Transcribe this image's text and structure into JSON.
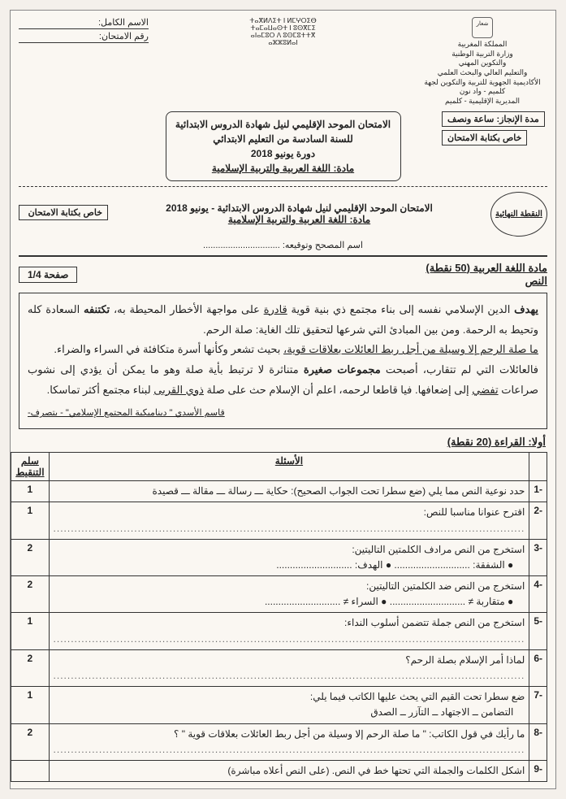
{
  "header": {
    "right": {
      "lines": [
        "المملكة المغربية",
        "وزارة التربية الوطنية",
        "والتكوين المهني",
        "والتعليم العالي والبحث العلمي",
        "الأكاديمية الجهوية للتربية والتكوين لجهة كلميم - واد نون",
        "المديرية الإقليمية - كلميم"
      ]
    },
    "center": {
      "lines": [
        "ⵜⴰⴳⵍⴷⵉⵜ ⵏ ⵍⵎⵖⵔⵉⴱ",
        "ⵜⴰⵎⴰⵡⴰⵙⵜ ⵏ ⵓⵙⴳⵎⵉ",
        "ⴰⵏⴰⵎⵓⵔ ⴷ ⵓⵙⵎⵓⵜⵜⴳ",
        "ⴰⵣⵣⵓⵍⴰⵏ"
      ]
    },
    "left": {
      "name_label": "الاسم الكامل:",
      "num_label": "رقم الامتحان:"
    }
  },
  "duration": "مدة الإنجاز: ساعة ونصف",
  "writer_tag": "خاص بكتابة الامتحان",
  "title_box": {
    "l1": "الامتحان الموحد الإقليمي لنيل شهادة الدروس الابتدائية",
    "l2": "للسنة السادسة من التعليم الابتدائي",
    "l3": "دورة يونيو 2018",
    "l4": "مادة: اللغة العربية والتربية الإسلامية"
  },
  "sub_header": {
    "final_grade": "النقطة النهائية",
    "line1": "الامتحان الموحد الإقليمي لنيل شهادة الدروس الابتدائية - يونيو 2018",
    "line2": "مادة: اللغة العربية والتربية الإسلامية",
    "sig": "اسم المصحح وتوقيعه: ..............................."
  },
  "section": {
    "title": "مادة اللغة العربية (50 نقطة)",
    "subtitle": "النص",
    "page": "صفحة 1/4"
  },
  "passage": {
    "p1a": "يهدف",
    "p1b": " الدين الإسلامي نفسه إلى بناء مجتمع ذي بنية قوية ",
    "p1c": "قادرة",
    "p1d": " على مواجهة الأخطار المحيطة به، ",
    "p1e": "تكتنفه",
    "p1f": " السعادة كله وتحيط به الرحمة. ومن بين المبادئ التي شرعها لتحقيق تلك الغاية: صلة الرحم.",
    "p2": "ما صلة الرحم إلا وسيلة من أجل ربط العائلات بعلاقات قوية،",
    "p2b": " بحيث تشعر وكأنها أسرة متكافئة في السراء والضراء.",
    "p3a": "فالعائلات التي لم تتقارب، أصبحت ",
    "p3b": "مجموعات صغيرة",
    "p3c": " متناثرة لا ترتبط بأية صلة وهو ما يمكن أن يؤدي إلى نشوب صراعات ",
    "p3d": "تفضي",
    "p3e": " إلى إضعافها. فيا قاطعا لرحمه، اعلم أن الإسلام حث على صلة ",
    "p3f": "ذوي القربى",
    "p3g": " لبناء مجتمع أكثر تماسكا.",
    "source": "قاسم الأسدي \" ديناميكية المجتمع الإسلامي\" - بتصرف-"
  },
  "reading": {
    "title": "أولا: القراءة (20 نقطة)",
    "th_q": "الأسئلة",
    "th_score": "سلم التنقيط",
    "rows": [
      {
        "n": "-1",
        "q": "حدد نوعية النص مما يلي (ضع سطرا تحت الجواب الصحيح): حكاية ـــ رسالة ـــ مقالة ـــ قصيدة",
        "score": "1"
      },
      {
        "n": "-2",
        "q": "اقترح عنوانا مناسبا للنص:",
        "dots": true,
        "score": "1"
      },
      {
        "n": "-3",
        "q": "استخرج من النص مرادف الكلمتين التاليتين:",
        "sub": "● الشفقة: ............................    ● الهدف: ............................",
        "score": "2"
      },
      {
        "n": "-4",
        "q": "استخرج من النص ضد الكلمتين التاليتين:",
        "sub": "● متقاربة ≠ ............................    ● السراء ≠ ............................",
        "score": "2"
      },
      {
        "n": "-5",
        "q": "استخرج من النص جملة تتضمن أسلوب النداء:",
        "dots": true,
        "score": "1"
      },
      {
        "n": "-6",
        "q": "لماذا أمر الإسلام بصلة الرحم؟",
        "dots": true,
        "score": "2"
      },
      {
        "n": "-7",
        "q": "ضع سطرا تحت القيم التي يحث عليها الكاتب فيما يلي:",
        "sub": "التضامن ــ الاجتهاد ــ التآزر ــ الصدق",
        "score": "1"
      },
      {
        "n": "-8",
        "q": "ما رأيك في قول الكاتب: \" ما صلة الرحم إلا وسيلة من أجل ربط العائلات بعلاقات قوية \" ؟",
        "dots": true,
        "score": "2"
      },
      {
        "n": "-9",
        "q": "اشكل الكلمات والجملة التي تحتها خط في النص. (على النص أعلاه مباشرة)",
        "score": ""
      }
    ]
  }
}
